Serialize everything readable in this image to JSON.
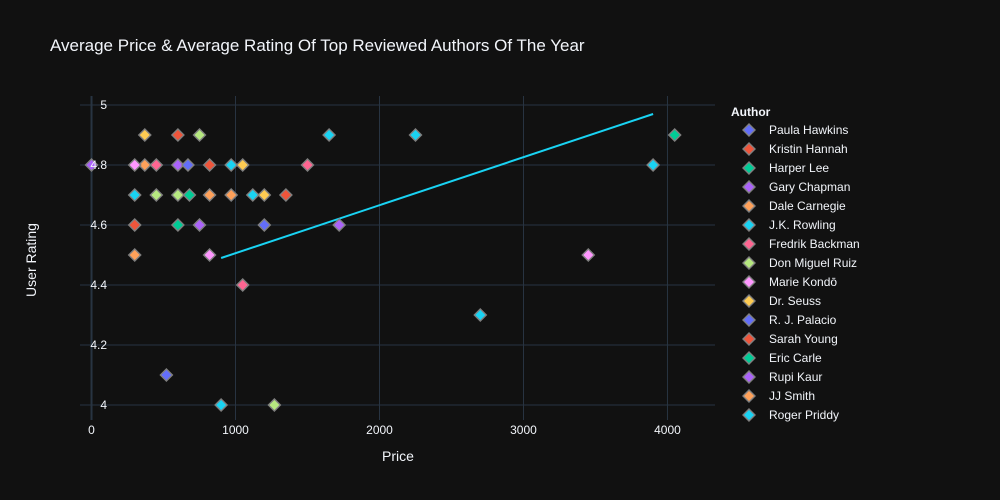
{
  "chart_data": {
    "type": "scatter",
    "title": "Average Price & Average Rating Of Top Reviewed Authors Of The Year",
    "xlabel": "Price",
    "ylabel": "User Rating",
    "xlim": [
      -80,
      4330
    ],
    "ylim": [
      3.95,
      5.03
    ],
    "xticks": [
      0,
      1000,
      2000,
      3000,
      4000
    ],
    "yticks": [
      4,
      4.2,
      4.4,
      4.6,
      4.8,
      5
    ],
    "ytick_labels": [
      "4",
      "4.2",
      "4.4",
      "4.6",
      "4.8",
      "5"
    ],
    "grid": true,
    "legend": {
      "title": "Author",
      "placement": "right"
    },
    "series": [
      {
        "name": "Paula Hawkins",
        "color": "#636efa",
        "points": [
          [
            520,
            4.1
          ],
          [
            1200,
            4.6
          ]
        ]
      },
      {
        "name": "Kristin Hannah",
        "color": "#EF553B",
        "points": [
          [
            300,
            4.6
          ],
          [
            600,
            4.9
          ],
          [
            820,
            4.8
          ],
          [
            1350,
            4.7
          ]
        ]
      },
      {
        "name": "Harper Lee",
        "color": "#00cc96",
        "points": [
          [
            600,
            4.6
          ],
          [
            680,
            4.7
          ],
          [
            4050,
            4.9
          ]
        ]
      },
      {
        "name": "Gary Chapman",
        "color": "#ab63fa",
        "points": [
          [
            0,
            4.8
          ],
          [
            600,
            4.8
          ],
          [
            750,
            4.6
          ],
          [
            1720,
            4.6
          ]
        ]
      },
      {
        "name": "Dale Carnegie",
        "color": "#FFA15A",
        "points": [
          [
            300,
            4.5
          ],
          [
            370,
            4.8
          ],
          [
            820,
            4.7
          ],
          [
            970,
            4.7
          ]
        ]
      },
      {
        "name": "J.K. Rowling",
        "color": "#19d3f3",
        "points": [
          [
            300,
            4.7
          ],
          [
            970,
            4.8
          ],
          [
            1120,
            4.7
          ],
          [
            1650,
            4.9
          ],
          [
            2250,
            4.9
          ],
          [
            2700,
            4.3
          ],
          [
            3900,
            4.8
          ]
        ]
      },
      {
        "name": "Fredrik Backman",
        "color": "#FF6692",
        "points": [
          [
            450,
            4.8
          ],
          [
            1050,
            4.4
          ],
          [
            1500,
            4.8
          ]
        ]
      },
      {
        "name": "Don Miguel Ruiz",
        "color": "#B6E880",
        "points": [
          [
            450,
            4.7
          ],
          [
            600,
            4.7
          ],
          [
            750,
            4.9
          ],
          [
            1270,
            4.0
          ]
        ]
      },
      {
        "name": "Marie Kondō",
        "color": "#FF97FF",
        "points": [
          [
            300,
            4.8
          ],
          [
            820,
            4.5
          ],
          [
            3450,
            4.5
          ]
        ]
      },
      {
        "name": "Dr. Seuss",
        "color": "#FECB52",
        "points": [
          [
            370,
            4.9
          ],
          [
            1050,
            4.8
          ],
          [
            1200,
            4.7
          ]
        ]
      },
      {
        "name": "R. J. Palacio",
        "color": "#636efa",
        "points": [
          [
            670,
            4.8
          ]
        ]
      },
      {
        "name": "Sarah Young",
        "color": "#EF553B",
        "points": []
      },
      {
        "name": "Eric Carle",
        "color": "#00cc96",
        "points": []
      },
      {
        "name": "Rupi Kaur",
        "color": "#ab63fa",
        "points": []
      },
      {
        "name": "JJ Smith",
        "color": "#FFA15A",
        "points": []
      },
      {
        "name": "Roger Priddy",
        "color": "#19d3f3",
        "points": [
          [
            900,
            4.0
          ]
        ]
      }
    ],
    "trendline": {
      "color": "#19d3f3",
      "points": [
        [
          900,
          4.49
        ],
        [
          3900,
          4.97
        ]
      ]
    }
  }
}
